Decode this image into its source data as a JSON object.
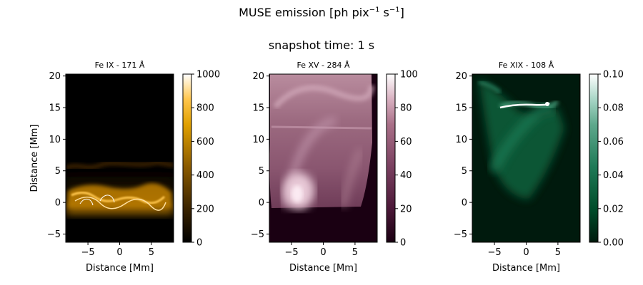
{
  "figure": {
    "title_main": "MUSE emission [ph pix",
    "title_exp1": "−1",
    "title_mid": " s",
    "title_exp2": "−1",
    "title_end": "]",
    "subtitle": "snapshot time: 1 s"
  },
  "chart_data": [
    {
      "type": "heatmap",
      "title": "Fe IX - 171 Å",
      "xlabel": "Distance [Mm]",
      "ylabel": "Distance [Mm]",
      "xlim": [
        -8.5,
        8.5
      ],
      "ylim": [
        -6.3,
        20.3
      ],
      "xticks": [
        -5,
        0,
        5
      ],
      "yticks": [
        -5,
        0,
        5,
        10,
        15,
        20
      ],
      "colorbar": {
        "ticks": [
          0,
          200,
          400,
          600,
          800,
          1000
        ],
        "range": [
          0,
          1000
        ]
      },
      "colors": [
        "#000000",
        "#3a2300",
        "#8a5a00",
        "#e0a000",
        "#ffc64d",
        "#ffffff"
      ]
    },
    {
      "type": "heatmap",
      "title": "Fe XV - 284 Å",
      "xlabel": "Distance [Mm]",
      "ylabel": "",
      "xlim": [
        -8.5,
        8.5
      ],
      "ylim": [
        -6.3,
        20.3
      ],
      "xticks": [
        -5,
        0,
        5
      ],
      "yticks": [
        -5,
        0,
        5,
        10,
        15,
        20
      ],
      "colorbar": {
        "ticks": [
          0,
          20,
          40,
          60,
          80,
          100
        ],
        "range": [
          0,
          100
        ]
      },
      "colors": [
        "#1a0012",
        "#4b1838",
        "#7a4060",
        "#a97088",
        "#d8b0c0",
        "#ffffff"
      ]
    },
    {
      "type": "heatmap",
      "title": "Fe XIX - 108 Å",
      "xlabel": "Distance [Mm]",
      "ylabel": "",
      "xlim": [
        -8.5,
        8.5
      ],
      "ylim": [
        -6.3,
        20.3
      ],
      "xticks": [
        -5,
        0,
        5
      ],
      "yticks": [
        -5,
        0,
        5,
        10,
        15,
        20
      ],
      "colorbar": {
        "ticks": [
          "0.00",
          "0.02",
          "0.04",
          "0.06",
          "0.08",
          "0.10"
        ],
        "range": [
          0,
          0.1
        ]
      },
      "colors": [
        "#001a0d",
        "#004d2a",
        "#1f7a57",
        "#5ea88c",
        "#a8d6c6",
        "#ffffff"
      ]
    }
  ]
}
